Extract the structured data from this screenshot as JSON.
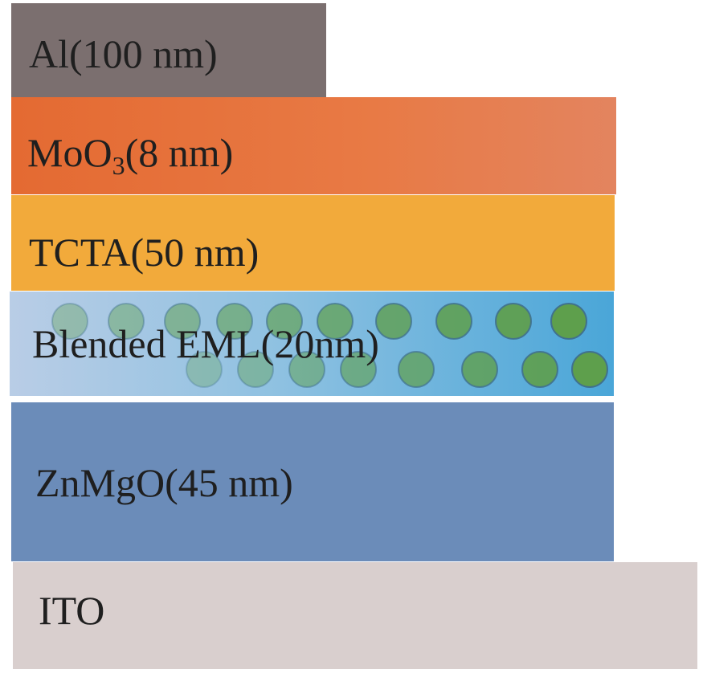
{
  "layers": {
    "al": {
      "name": "Al",
      "thickness": "(100 nm)",
      "color": "#7b6f6f"
    },
    "moo3": {
      "name": "MoO",
      "subscript": "3",
      "thickness": "(8 nm)",
      "color": "#e87a45"
    },
    "tcta": {
      "name": "TCTA",
      "thickness": "(50 nm)",
      "color": "#f2aa3b"
    },
    "eml": {
      "name": "Blended EML",
      "thickness": "(20nm)",
      "color": "#6fb3d8"
    },
    "znmgo": {
      "name": "ZnMgO",
      "thickness": "(45 nm)",
      "color": "#6b8cb9"
    },
    "ito": {
      "name": "ITO",
      "color": "#d9cfce"
    }
  }
}
